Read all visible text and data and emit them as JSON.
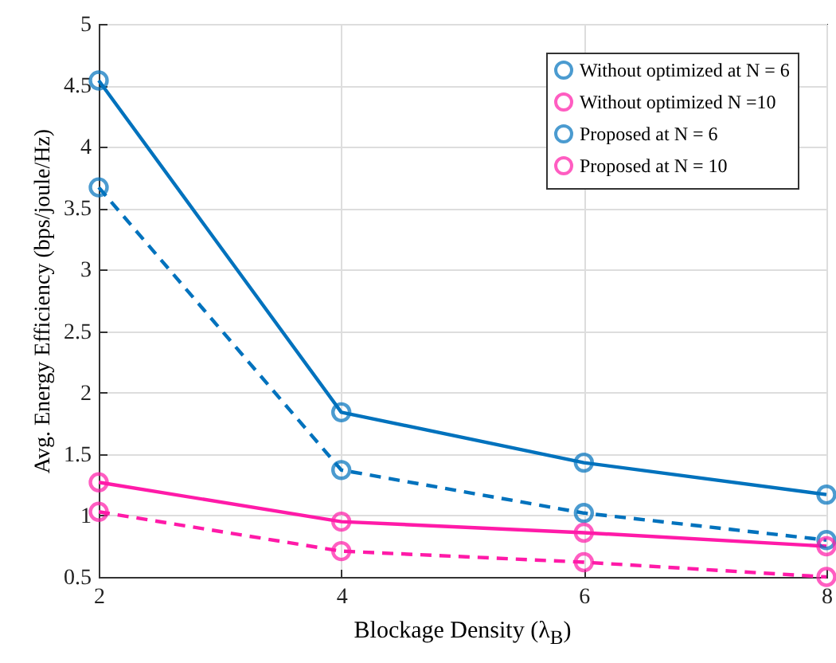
{
  "chart_data": {
    "type": "line",
    "xlabel": "Blockage Density (λ$_{B}$)",
    "ylabel": "Avg. Energy Efficiency (bps/joule/Hz)",
    "x": [
      2,
      4,
      6,
      8
    ],
    "series": [
      {
        "name": "Without optimized at N = 6",
        "color": "#0072bd",
        "line_style": "dashed",
        "values": [
          3.67,
          1.37,
          1.02,
          0.8
        ]
      },
      {
        "name": "Without optimized N =10",
        "color": "#ff1aa8",
        "line_style": "dashed",
        "values": [
          1.03,
          0.71,
          0.62,
          0.5
        ]
      },
      {
        "name": "Proposed at N = 6",
        "color": "#0072bd",
        "line_style": "solid",
        "values": [
          4.54,
          1.84,
          1.43,
          1.17
        ]
      },
      {
        "name": "Proposed at N = 10",
        "color": "#ff1aa8",
        "line_style": "solid",
        "values": [
          1.27,
          0.95,
          0.86,
          0.75
        ]
      }
    ],
    "xlim": [
      2,
      8
    ],
    "xticks": [
      2,
      4,
      6,
      8
    ],
    "ylim": [
      0.5,
      5
    ],
    "yticks": [
      0.5,
      1,
      1.5,
      2,
      2.5,
      3,
      3.5,
      4,
      4.5,
      5
    ],
    "grid": true,
    "legend": "top right",
    "marker": "circle"
  }
}
